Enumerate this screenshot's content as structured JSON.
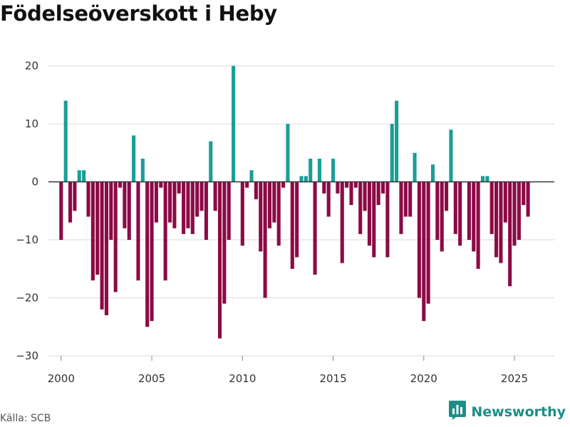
{
  "title": "Födelseöverskott i Heby",
  "source": "Källa: SCB",
  "brand": {
    "name": "Newsworthy",
    "icon": "bar-chart-logo-icon"
  },
  "colors": {
    "positive": "#1a9e96",
    "negative": "#8c0a45",
    "zero_line": "#333333",
    "grid": "#d9d9d9"
  },
  "chart_data": {
    "type": "bar",
    "title": "Födelseöverskott i Heby",
    "xlabel": "",
    "ylabel": "",
    "ylim": [
      -30,
      24
    ],
    "xlim": [
      1999.3,
      2027.2
    ],
    "yticks": [
      -30,
      -20,
      -10,
      0,
      10,
      20
    ],
    "xticks": [
      2000,
      2005,
      2010,
      2015,
      2020,
      2025
    ],
    "grid": true,
    "x": [
      2000.0,
      2000.25,
      2000.5,
      2000.75,
      2001.0,
      2001.25,
      2001.5,
      2001.75,
      2002.0,
      2002.25,
      2002.5,
      2002.75,
      2003.0,
      2003.25,
      2003.5,
      2003.75,
      2004.0,
      2004.25,
      2004.5,
      2004.75,
      2005.0,
      2005.25,
      2005.5,
      2005.75,
      2006.0,
      2006.25,
      2006.5,
      2006.75,
      2007.0,
      2007.25,
      2007.5,
      2007.75,
      2008.0,
      2008.25,
      2008.5,
      2008.75,
      2009.0,
      2009.25,
      2009.5,
      2009.75,
      2010.0,
      2010.25,
      2010.5,
      2010.75,
      2011.0,
      2011.25,
      2011.5,
      2011.75,
      2012.0,
      2012.25,
      2012.5,
      2012.75,
      2013.0,
      2013.25,
      2013.5,
      2013.75,
      2014.0,
      2014.25,
      2014.5,
      2014.75,
      2015.0,
      2015.25,
      2015.5,
      2015.75,
      2016.0,
      2016.25,
      2016.5,
      2016.75,
      2017.0,
      2017.25,
      2017.5,
      2017.75,
      2018.0,
      2018.25,
      2018.5,
      2018.75,
      2019.0,
      2019.25,
      2019.5,
      2019.75,
      2020.0,
      2020.25,
      2020.5,
      2020.75,
      2021.0,
      2021.25,
      2021.5,
      2021.75,
      2022.0,
      2022.25,
      2022.5,
      2022.75,
      2023.0,
      2023.25,
      2023.5,
      2023.75,
      2024.0,
      2024.25,
      2024.5,
      2024.75,
      2025.0,
      2025.25,
      2025.5,
      2025.75
    ],
    "values": [
      -10,
      14,
      -7,
      -5,
      2,
      2,
      -6,
      -17,
      -16,
      -22,
      -23,
      -10,
      -19,
      -1,
      -8,
      -10,
      8,
      -17,
      4,
      -25,
      -24,
      -7,
      -1,
      -17,
      -7,
      -8,
      -2,
      -9,
      -8,
      -9,
      -6,
      -5,
      -10,
      7,
      -5,
      -27,
      -21,
      -10,
      20,
      0,
      -11,
      -1,
      2,
      -3,
      -12,
      -20,
      -8,
      -7,
      -11,
      -1,
      10,
      -15,
      -13,
      1,
      1,
      4,
      -16,
      4,
      -2,
      -6,
      4,
      -2,
      -14,
      -1,
      -4,
      -1,
      -9,
      -5,
      -11,
      -13,
      -4,
      -2,
      -13,
      10,
      14,
      -9,
      -6,
      -6,
      5,
      -20,
      -24,
      -21,
      3,
      -10,
      -12,
      -5,
      9,
      -9,
      -11,
      0,
      -10,
      -12,
      -15,
      1,
      1,
      -9,
      -13,
      -14,
      -7,
      -18,
      -11,
      -10,
      -4,
      -6
    ]
  }
}
